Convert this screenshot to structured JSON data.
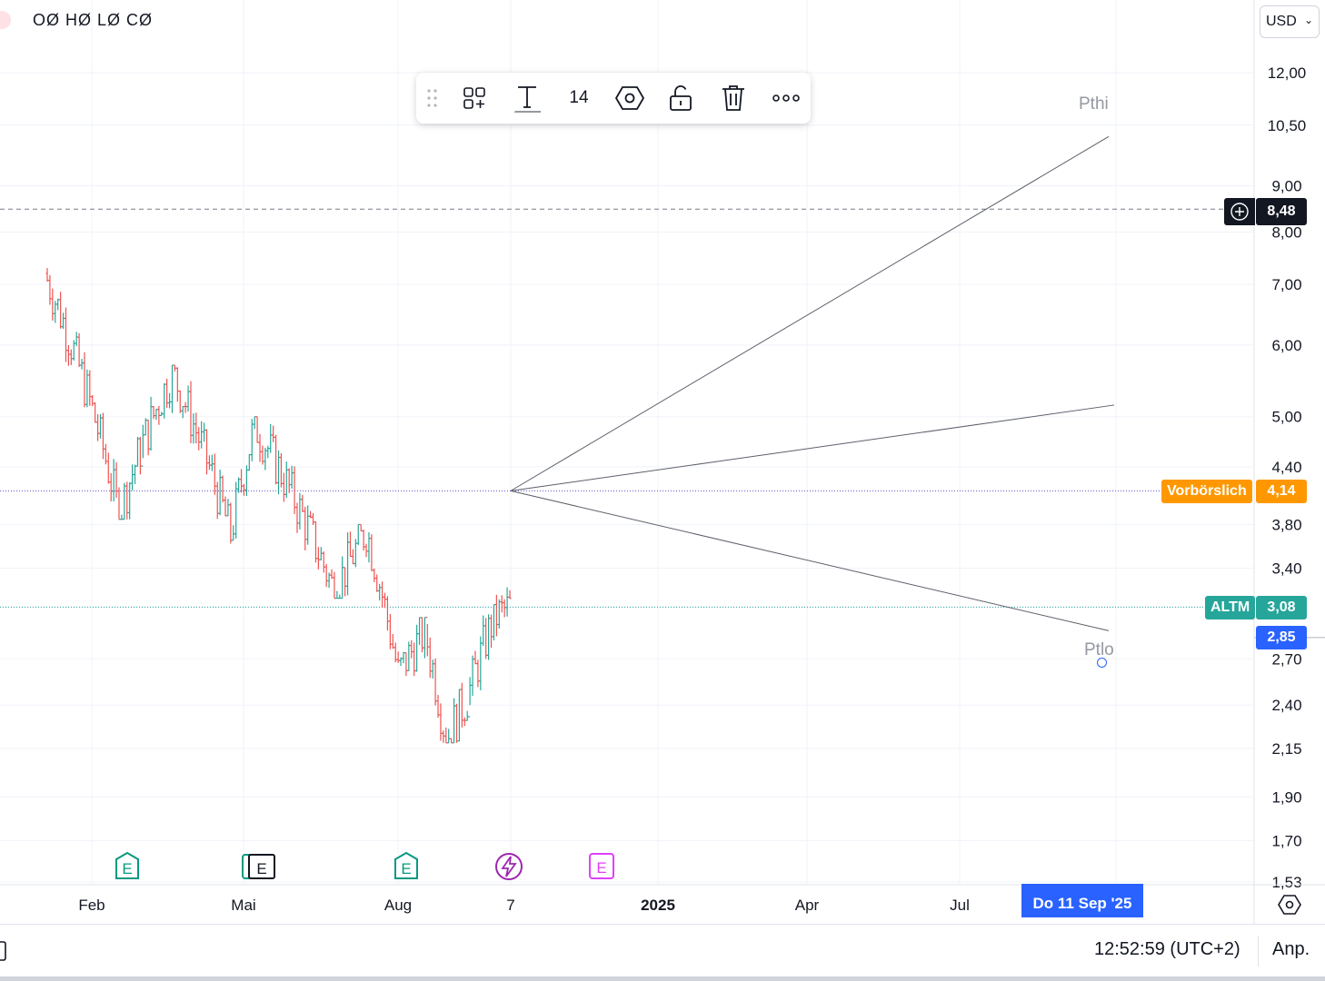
{
  "header": {
    "ohlc_text": "OØ HØ LØ CØ",
    "currency": "USD"
  },
  "drawing_toolbar": {
    "font_size": "14",
    "icons": [
      "drag-handle-icon",
      "templates-icon",
      "text-color-icon",
      "settings-icon",
      "lock-icon",
      "trash-icon",
      "more-icon"
    ]
  },
  "price_tags": {
    "crosshair": {
      "value": "8,48",
      "color": "#131722"
    },
    "premarket": {
      "name": "Vorbörslich",
      "value": "4,14",
      "color": "#ff9800"
    },
    "last": {
      "name": "ALTM",
      "value": "3,08",
      "color": "#26a69a"
    },
    "cursor": {
      "value": "2,85",
      "color": "#2962ff"
    }
  },
  "target_labels": {
    "high": "Pthi",
    "low": "Ptlo"
  },
  "events": {
    "earnings_label": "E",
    "items": [
      {
        "type": "earnings",
        "color": "#089981"
      },
      {
        "type": "earnings",
        "color": "#131722"
      },
      {
        "type": "earnings",
        "color": "#089981"
      },
      {
        "type": "split",
        "color": "#9c27b0"
      },
      {
        "type": "earnings-future",
        "color": "#e040fb"
      }
    ]
  },
  "bottom": {
    "clock": "12:52:59 (UTC+2)",
    "adjust": "Anp.",
    "date_badge": "Do 11 Sep '25"
  },
  "chart_data": {
    "type": "ohlc",
    "y_scale": "log",
    "y_ticks": [
      "12,00",
      "10,50",
      "9,00",
      "8,00",
      "7,00",
      "6,00",
      "5,00",
      "4,40",
      "3,80",
      "3,40",
      "3,08",
      "2,70",
      "2,40",
      "2,15",
      "1,90",
      "1,70",
      "1,53"
    ],
    "y_tick_values": [
      12.0,
      10.5,
      9.0,
      8.0,
      7.0,
      6.0,
      5.0,
      4.4,
      3.8,
      3.4,
      3.08,
      2.7,
      2.4,
      2.15,
      1.9,
      1.7,
      1.53
    ],
    "x_ticks": [
      "Feb",
      "Mai",
      "Aug",
      "7",
      "2025",
      "Apr",
      "Jul"
    ],
    "colors": {
      "up": "#26a69a",
      "down": "#ef5350"
    },
    "projection": {
      "origin_value": 4.14,
      "target_high": 10.2,
      "target_mid": 5.15,
      "target_low": 2.9
    },
    "segments": [
      {
        "o": 7.2,
        "c": 3.9,
        "hi": 7.3,
        "lo": 3.85
      },
      {
        "o": 3.9,
        "c": 4.6,
        "hi": 4.75,
        "lo": 3.85
      },
      {
        "o": 4.6,
        "c": 5.6,
        "hi": 5.7,
        "lo": 4.5
      },
      {
        "o": 5.6,
        "c": 3.7,
        "hi": 5.7,
        "lo": 3.62
      },
      {
        "o": 3.7,
        "c": 4.9,
        "hi": 5.0,
        "lo": 3.65
      },
      {
        "o": 4.9,
        "c": 3.2,
        "hi": 5.0,
        "lo": 3.15
      },
      {
        "o": 3.2,
        "c": 3.75,
        "hi": 3.8,
        "lo": 3.15
      },
      {
        "o": 3.75,
        "c": 2.6,
        "hi": 3.8,
        "lo": 2.55
      },
      {
        "o": 2.6,
        "c": 2.9,
        "hi": 3.0,
        "lo": 2.55
      },
      {
        "o": 2.9,
        "c": 2.2,
        "hi": 2.95,
        "lo": 2.18
      },
      {
        "o": 2.2,
        "c": 2.45,
        "hi": 2.75,
        "lo": 2.18
      },
      {
        "o": 2.45,
        "c": 3.0,
        "hi": 3.1,
        "lo": 2.4
      },
      {
        "o": 3.0,
        "c": 3.08,
        "hi": 3.25,
        "lo": 2.85
      }
    ]
  }
}
